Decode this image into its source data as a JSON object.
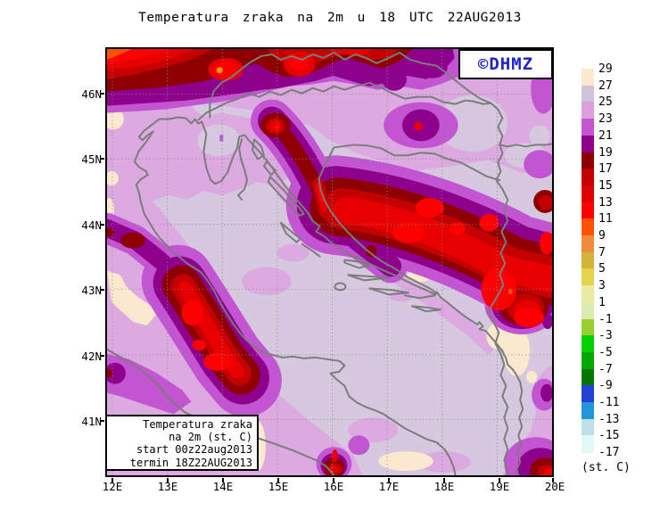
{
  "title": "Temperatura zraka na 2m u 18 UTC 22AUG2013",
  "logo": {
    "text": "©DHMZ",
    "color": "#2222CC"
  },
  "info_box": {
    "lines": [
      "Temperatura zraka",
      "na 2m (st. C)",
      "start 00z22aug2013",
      "termin 18Z22AUG2013"
    ]
  },
  "axes": {
    "lon_labels": [
      "12E",
      "13E",
      "14E",
      "15E",
      "16E",
      "17E",
      "18E",
      "19E",
      "20E"
    ],
    "lat_labels": [
      "46N",
      "45N",
      "44N",
      "43N",
      "42N",
      "41N"
    ]
  },
  "colorbar": {
    "unit": "(st. C)",
    "labels": [
      "29",
      "27",
      "25",
      "23",
      "21",
      "19",
      "17",
      "15",
      "13",
      "11",
      "9",
      "7",
      "5",
      "3",
      "1",
      "-1",
      "-3",
      "-5",
      "-7",
      "-9",
      "-11",
      "-13",
      "-15",
      "-17"
    ],
    "colors": [
      "#FCE9CE",
      "#CFC3DC",
      "#DDA0DD",
      "#C355D2",
      "#8D018D",
      "#8E0000",
      "#C40000",
      "#E00000",
      "#FF0000",
      "#FF5200",
      "#EE8C3C",
      "#D4B438",
      "#E4D44C",
      "#ECEAA0",
      "#DCECB0",
      "#98D030",
      "#00D000",
      "#00A800",
      "#007800",
      "#2040D8",
      "#2098D8",
      "#C0E0E8",
      "#E4F8F8"
    ]
  },
  "map_palette": {
    "sea_25_27": "#D5C8DF",
    "plum_23_25": "#DCA9E0",
    "orchid_21_23": "#C355D2",
    "magenta_19_21": "#8D018D",
    "darkred_17_19": "#8E0000",
    "firebrick_15_17": "#C40000",
    "red_13_15": "#E80000",
    "brightred_11_13": "#FF0000",
    "orangered_9_11": "#FF5200",
    "orange_7_9": "#FFA000",
    "cream_27_29": "#FBE9CF",
    "coastline": "#7C7C7C",
    "grid": "#8A8A8A"
  }
}
